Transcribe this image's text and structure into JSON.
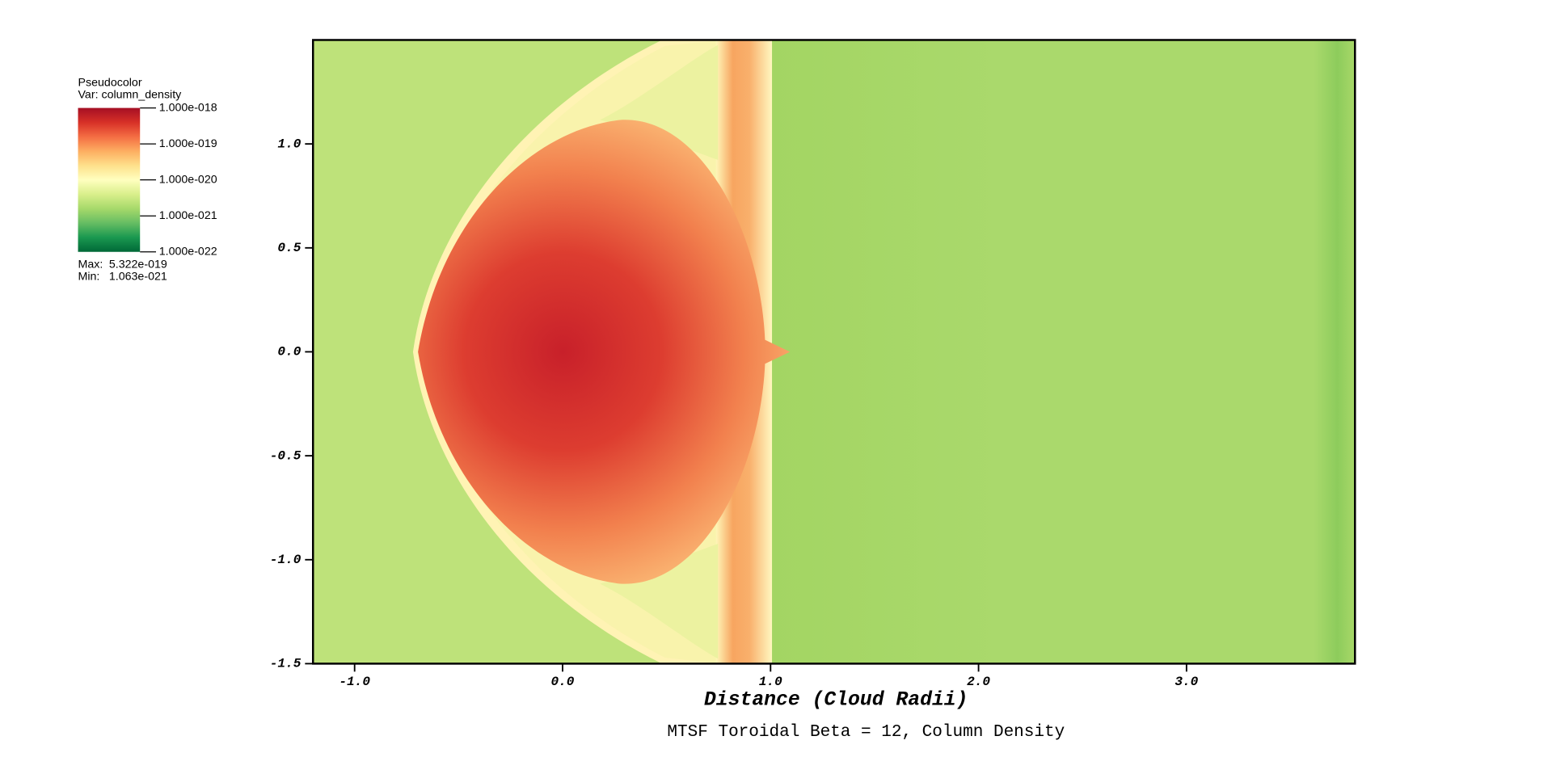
{
  "chart_data": {
    "type": "pseudocolor",
    "title": "MTSF Toroidal Beta = 12, Column Density",
    "xlabel": "Distance (Cloud Radii)",
    "xlim": [
      -1.2,
      3.81
    ],
    "ylim": [
      -1.5,
      1.5
    ],
    "xticks": [
      {
        "value": -1,
        "label": "-1.0"
      },
      {
        "value": 0,
        "label": "0.0"
      },
      {
        "value": 1,
        "label": "1.0"
      },
      {
        "value": 2,
        "label": "2.0"
      },
      {
        "value": 3,
        "label": "3.0"
      }
    ],
    "yticks": [
      {
        "value": 1,
        "label": "1.0"
      },
      {
        "value": 0.5,
        "label": "0.5"
      },
      {
        "value": 0,
        "label": "0.0"
      },
      {
        "value": -0.5,
        "label": "-0.5"
      },
      {
        "value": -1,
        "label": "-1.0"
      },
      {
        "value": -1.5,
        "label": "-1.5"
      }
    ],
    "legend": {
      "title": "Pseudocolor",
      "variable": "Var: column_density",
      "log": true,
      "colormap": [
        "#a50f24",
        "#d73027",
        "#f46d43",
        "#fdae61",
        "#fee08b",
        "#ffffbf",
        "#d9ef8b",
        "#a6d96a",
        "#66bd63",
        "#1a9850",
        "#006837"
      ],
      "ticks": [
        {
          "value": 1e-18,
          "label": "1.000e-018"
        },
        {
          "value": 1e-19,
          "label": "1.000e-019"
        },
        {
          "value": 1e-20,
          "label": "1.000e-020"
        },
        {
          "value": 1e-21,
          "label": "1.000e-021"
        },
        {
          "value": 1e-22,
          "label": "1.000e-022"
        }
      ],
      "max_label": "Max:",
      "max": {
        "value": 5.322e-19,
        "label": "5.322e-019"
      },
      "min_label": "Min:",
      "min": {
        "value": 1.063e-21,
        "label": "1.063e-021"
      }
    }
  }
}
